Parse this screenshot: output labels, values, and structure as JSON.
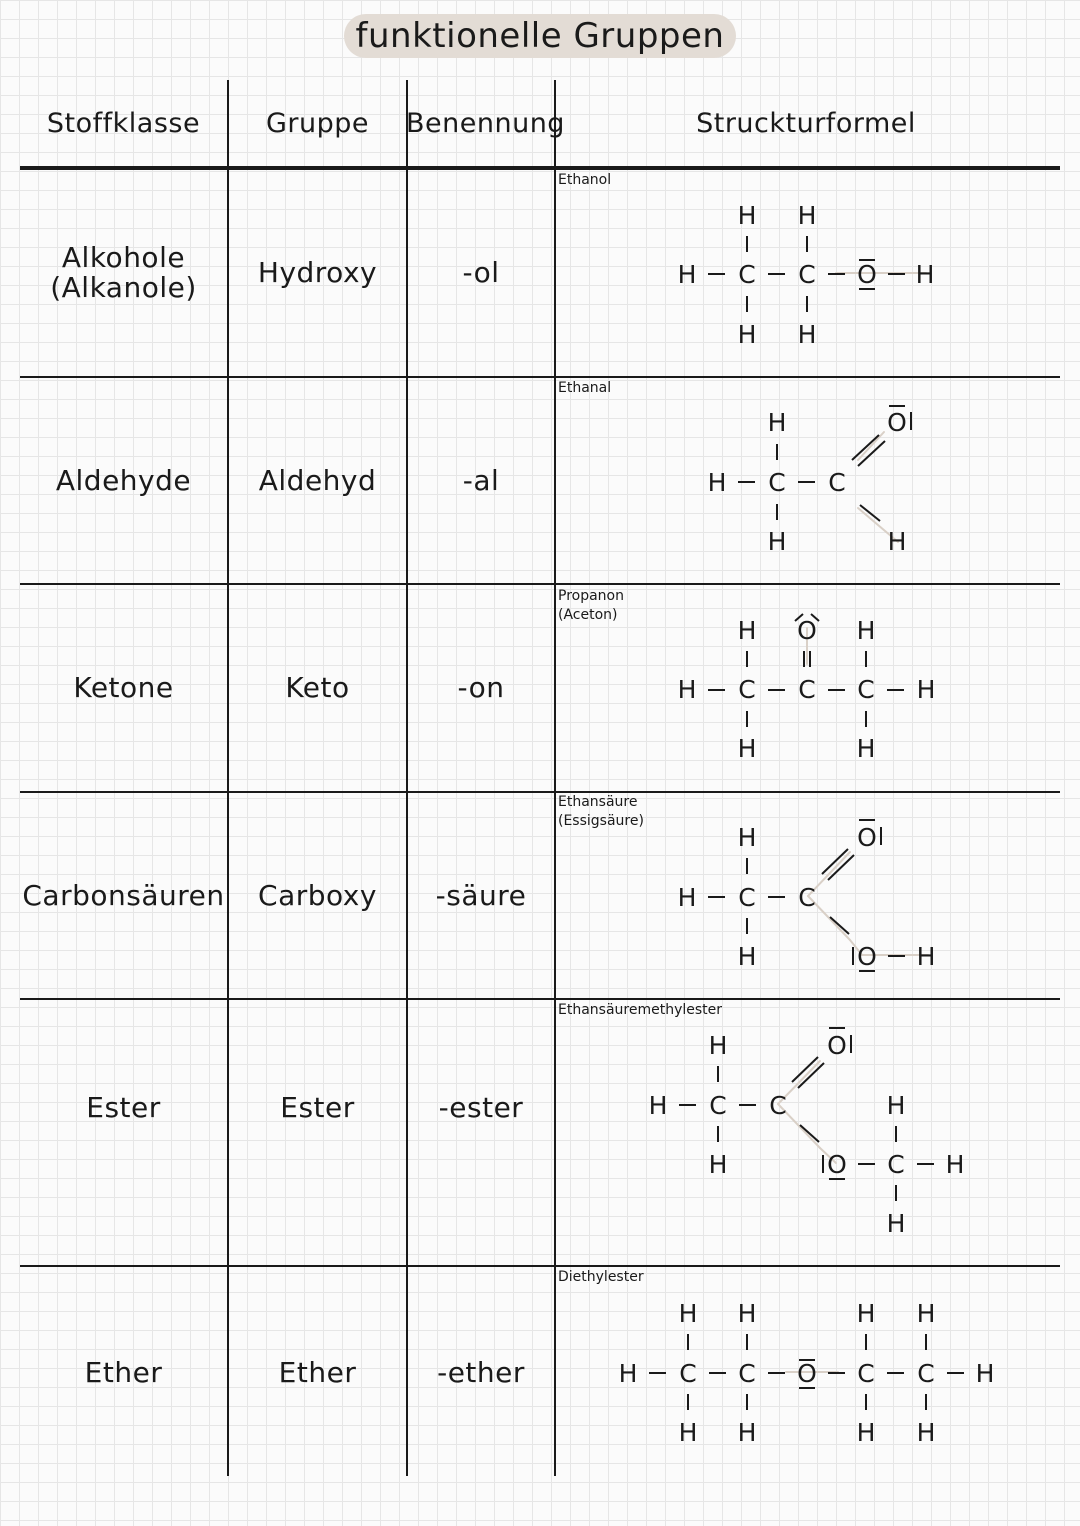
{
  "title": "funktionelle Gruppen",
  "headers": {
    "stoffklasse": "Stoffklasse",
    "gruppe": "Gruppe",
    "benennung": "Benennung",
    "strukturformel": "Struckturformel"
  },
  "rows": [
    {
      "stoffklasse": "Alkohole\n(Alkanole)",
      "gruppe": "Hydroxy",
      "benennung": "-ol",
      "compound": "Ethanol"
    },
    {
      "stoffklasse": "Aldehyde",
      "gruppe": "Aldehyd",
      "benennung": "-al",
      "compound": "Ethanal"
    },
    {
      "stoffklasse": "Ketone",
      "gruppe": "Keto",
      "benennung": "-on",
      "compound": "Propanon\n(Aceton)"
    },
    {
      "stoffklasse": "Carbonsäuren",
      "gruppe": "Carboxy",
      "benennung": "-säure",
      "compound": "Ethansäure\n(Essigsäure)"
    },
    {
      "stoffklasse": "Ester",
      "gruppe": "Ester",
      "benennung": "-ester",
      "compound": "Ethansäuremethylester"
    },
    {
      "stoffklasse": "Ether",
      "gruppe": "Ether",
      "benennung": "-ether",
      "compound": "Diethylester"
    }
  ],
  "atoms": {
    "H": "H",
    "C": "C",
    "O": "O"
  },
  "colors": {
    "highlight": "#d9d0c7",
    "title_bg": "#e3dcd5",
    "ink": "#1a1a1a"
  }
}
